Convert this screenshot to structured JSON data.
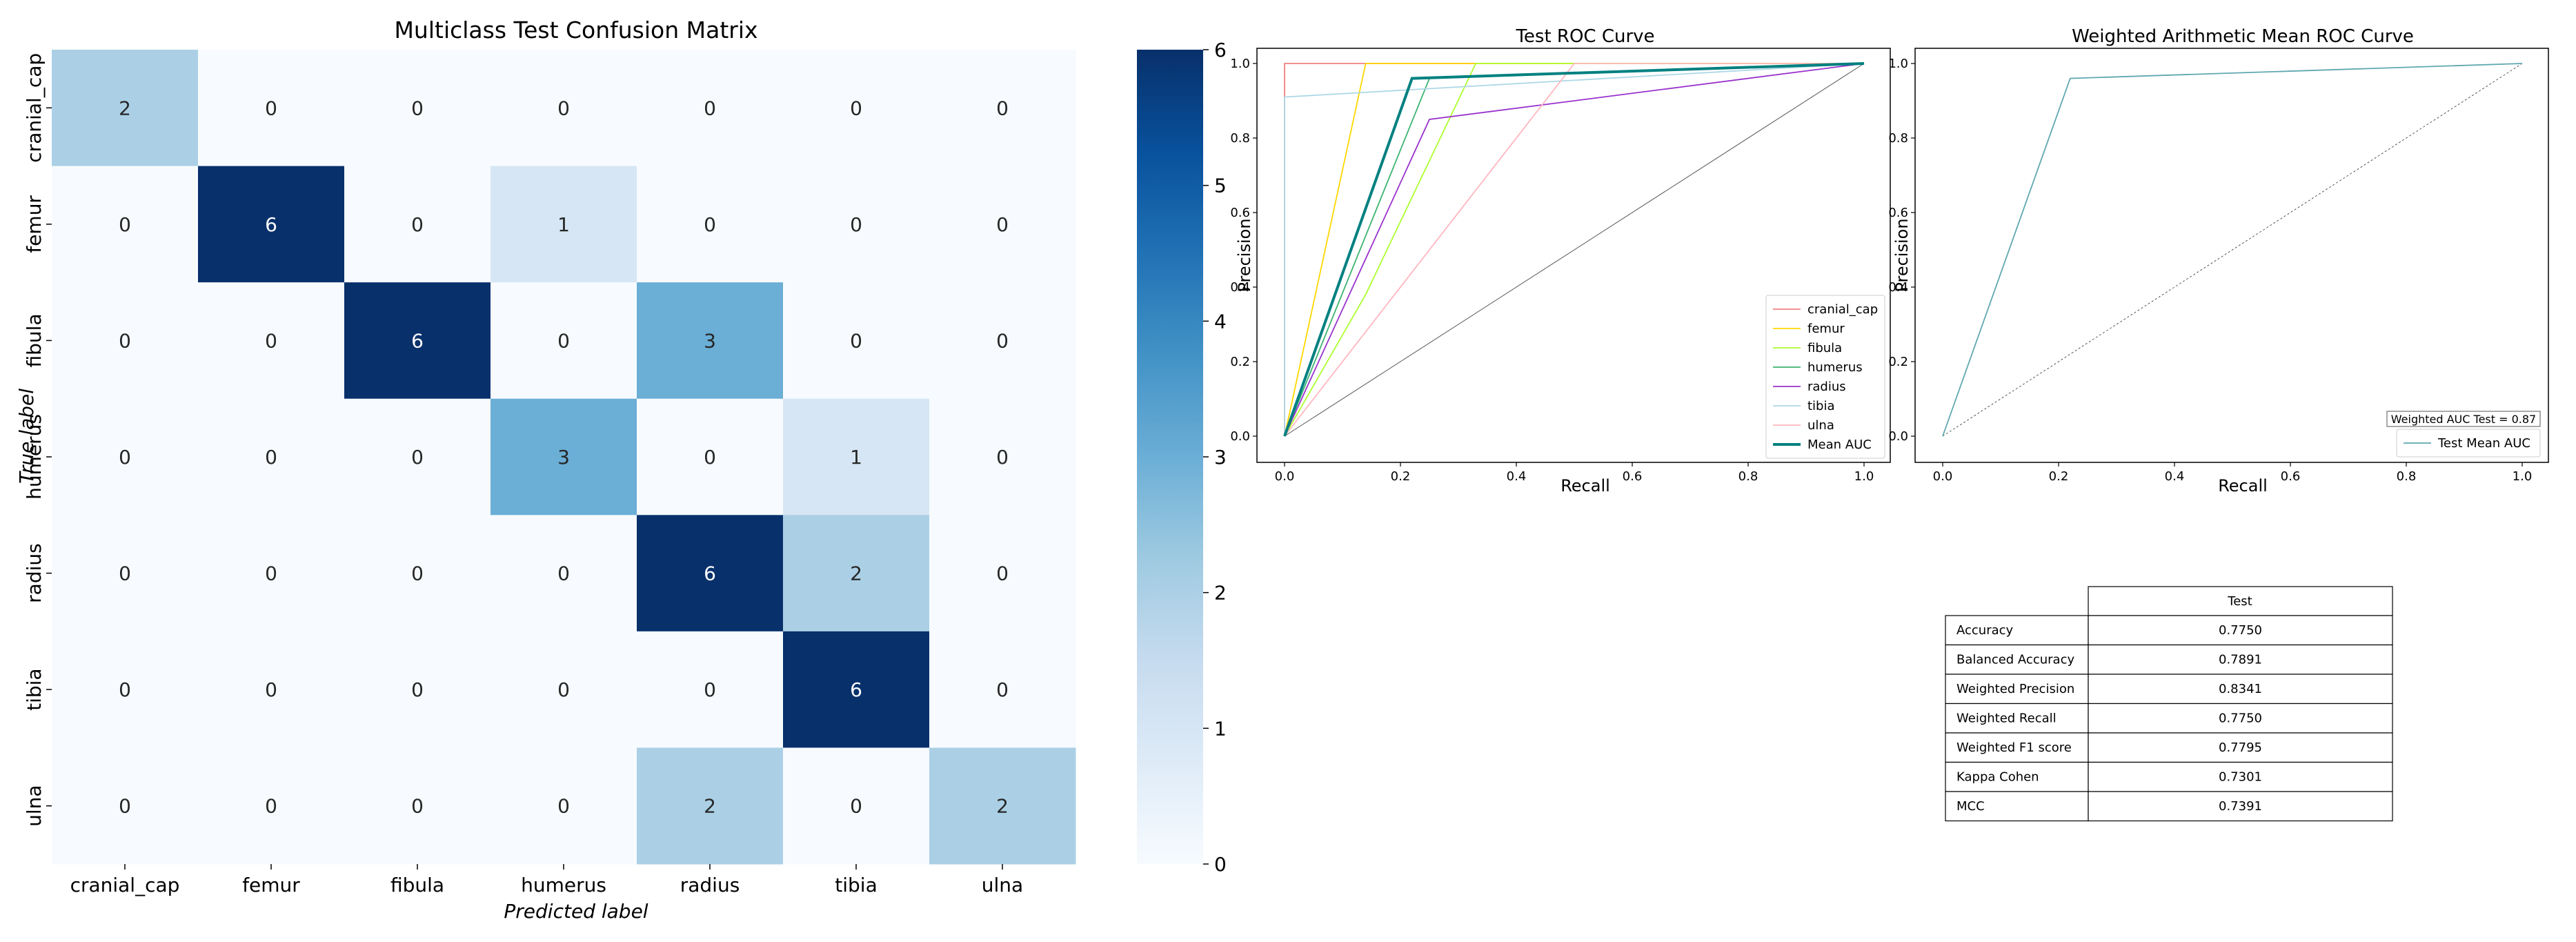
{
  "chart_data": [
    {
      "type": "heatmap",
      "title": "Multiclass Test Confusion Matrix",
      "xlabel": "Predicted label",
      "ylabel": "True label",
      "x_categories": [
        "cranial_cap",
        "femur",
        "fibula",
        "humerus",
        "radius",
        "tibia",
        "ulna"
      ],
      "y_categories": [
        "cranial_cap",
        "femur",
        "fibula",
        "humerus",
        "radius",
        "tibia",
        "ulna"
      ],
      "values": [
        [
          2,
          0,
          0,
          0,
          0,
          0,
          0
        ],
        [
          0,
          6,
          0,
          1,
          0,
          0,
          0
        ],
        [
          0,
          0,
          6,
          0,
          3,
          0,
          0
        ],
        [
          0,
          0,
          0,
          3,
          0,
          1,
          0
        ],
        [
          0,
          0,
          0,
          0,
          6,
          2,
          0
        ],
        [
          0,
          0,
          0,
          0,
          0,
          6,
          0
        ],
        [
          0,
          0,
          0,
          0,
          2,
          0,
          2
        ]
      ],
      "colorbar": {
        "min": 0,
        "max": 6,
        "ticks": [
          "0",
          "1",
          "2",
          "3",
          "4",
          "5",
          "6"
        ]
      },
      "colormap": [
        "#f7fbff",
        "#deebf7",
        "#c6dbef",
        "#9ecae1",
        "#6baed6",
        "#4292c6",
        "#2171b5",
        "#08519c",
        "#08306b"
      ]
    },
    {
      "type": "line",
      "title": "Test ROC Curve",
      "xlabel": "Recall",
      "ylabel": "Precision",
      "xlim": [
        0,
        1
      ],
      "ylim": [
        0,
        1
      ],
      "ticks": [
        "0.0",
        "0.2",
        "0.4",
        "0.6",
        "0.8",
        "1.0"
      ],
      "legend_position": "lower-right",
      "series": [
        {
          "name": "cranial_cap",
          "color": "#f08080",
          "x": [
            0,
            0,
            1
          ],
          "y": [
            0,
            1,
            1
          ]
        },
        {
          "name": "femur",
          "color": "#ffd700",
          "x": [
            0,
            0.14,
            1
          ],
          "y": [
            0,
            1,
            1
          ]
        },
        {
          "name": "fibula",
          "color": "#adff2f",
          "x": [
            0,
            0.14,
            0.33,
            1
          ],
          "y": [
            0,
            0.38,
            1,
            1
          ]
        },
        {
          "name": "humerus",
          "color": "#3cb371",
          "x": [
            0,
            0.25,
            1
          ],
          "y": [
            0,
            0.96,
            1
          ]
        },
        {
          "name": "radius",
          "color": "#9932cc",
          "x": [
            0,
            0.25,
            1
          ],
          "y": [
            0,
            0.85,
            1
          ]
        },
        {
          "name": "tibia",
          "color": "#add8e6",
          "x": [
            0,
            0,
            1
          ],
          "y": [
            0,
            0.91,
            1
          ]
        },
        {
          "name": "ulna",
          "color": "#ffb6c1",
          "x": [
            0,
            0.5,
            1
          ],
          "y": [
            0,
            1,
            1
          ]
        },
        {
          "name": "Mean AUC",
          "color": "#008080",
          "x": [
            0,
            0.22,
            1
          ],
          "y": [
            0,
            0.96,
            1
          ]
        }
      ],
      "diagonal": {
        "x": [
          0,
          1
        ],
        "y": [
          0,
          1
        ]
      }
    },
    {
      "type": "line",
      "title": "Weighted Arithmetic Mean ROC Curve",
      "xlabel": "Recall",
      "ylabel": "Precision",
      "xlim": [
        0,
        1
      ],
      "ylim": [
        0,
        1
      ],
      "ticks": [
        "0.0",
        "0.2",
        "0.4",
        "0.6",
        "0.8",
        "1.0"
      ],
      "annotation": "Weighted AUC Test = 0.87",
      "legend_position": "lower-right",
      "series": [
        {
          "name": "Test Mean AUC",
          "color": "#5fa8b0",
          "x": [
            0,
            0.22,
            1
          ],
          "y": [
            0,
            0.96,
            1
          ]
        }
      ],
      "diagonal": {
        "x": [
          0,
          1
        ],
        "y": [
          0,
          1
        ]
      }
    },
    {
      "type": "table",
      "column_header": "Test",
      "rows": [
        {
          "label": "Accuracy",
          "value": "0.7750"
        },
        {
          "label": "Balanced Accuracy",
          "value": "0.7891"
        },
        {
          "label": "Weighted Precision",
          "value": "0.8341"
        },
        {
          "label": "Weighted Recall",
          "value": "0.7750"
        },
        {
          "label": "Weighted F1 score",
          "value": "0.7795"
        },
        {
          "label": "Kappa Cohen",
          "value": "0.7301"
        },
        {
          "label": "MCC",
          "value": "0.7391"
        }
      ]
    }
  ]
}
